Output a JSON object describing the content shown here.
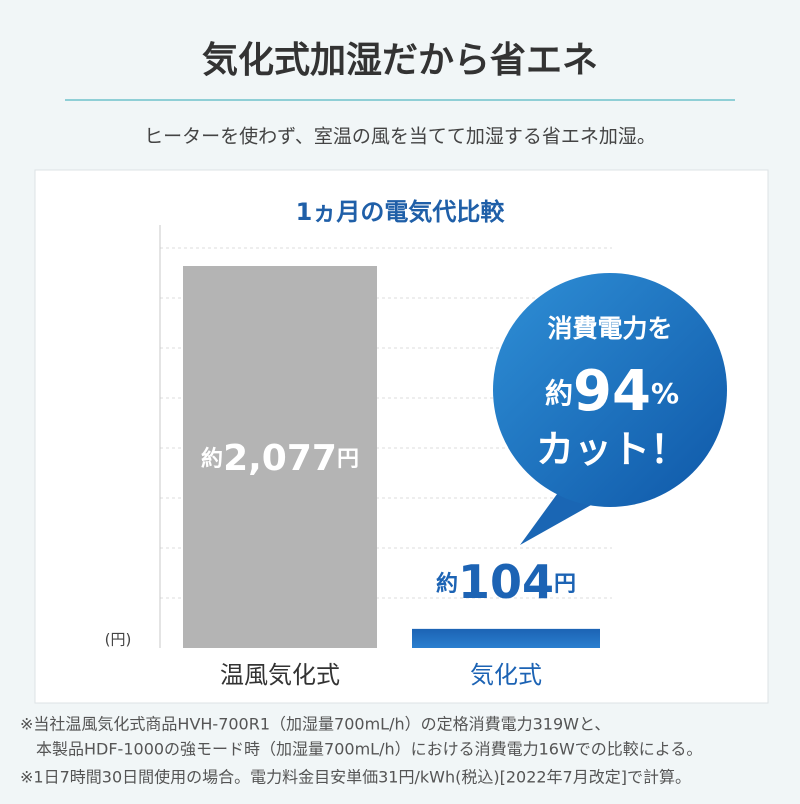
{
  "header": {
    "title": "気化式加湿だから省エネ",
    "subtitle": "ヒーターを使わず、室温の風を当てて加湿する省エネ加湿。"
  },
  "chart_data": {
    "type": "bar",
    "title": "1ヵ月の電気代比較",
    "y_label": "(円)",
    "categories": [
      "温風気化式",
      "気化式"
    ],
    "values": [
      2077,
      104
    ],
    "value_labels": [
      "約2,077円",
      "約104円"
    ],
    "colors": [
      "#b4b4b4",
      "#1c63b4"
    ],
    "ylim": [
      0,
      2300
    ],
    "annotation": {
      "line1": "消費電力を",
      "prefix": "約",
      "number": 94,
      "unit": "%",
      "line2": "カット！"
    }
  },
  "notes": [
    "※当社温風気化式商品HVH-700R1（加湿量700mL/h）の定格消費電力319Wと、",
    "本製品HDF-1000の強モード時（加湿量700mL/h）における消費電力16Wでの比較による。",
    "※1日7時間30日間使用の場合。電力料金目安単価31円/kWh(税込)[2022年7月改定]で計算。"
  ]
}
